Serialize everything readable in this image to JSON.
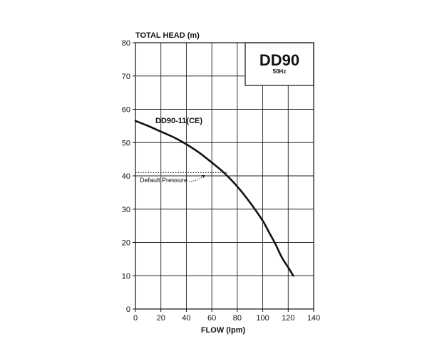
{
  "chart_data": {
    "type": "line",
    "title": "DD90",
    "subtitle": "50Hz",
    "xlabel": "FLOW (lpm)",
    "ylabel": "TOTAL HEAD (m)",
    "xlim": [
      0,
      140
    ],
    "ylim": [
      0,
      80
    ],
    "xticks": [
      0,
      20,
      40,
      60,
      80,
      100,
      120,
      140
    ],
    "yticks": [
      0,
      10,
      20,
      30,
      40,
      50,
      60,
      70,
      80
    ],
    "grid": true,
    "series": [
      {
        "name": "DD90-11(CE)",
        "color": "#111111",
        "x": [
          0,
          10,
          20,
          30,
          40,
          50,
          60,
          70,
          80,
          90,
          100,
          105,
          110,
          115,
          120,
          124
        ],
        "y": [
          56.5,
          55,
          53.3,
          51.6,
          49.5,
          47,
          44,
          40.8,
          36.8,
          32,
          26.5,
          23,
          19.5,
          15.5,
          12.5,
          10
        ]
      }
    ],
    "annotations": [
      {
        "text": "Default Pressure",
        "y": 41
      }
    ]
  }
}
